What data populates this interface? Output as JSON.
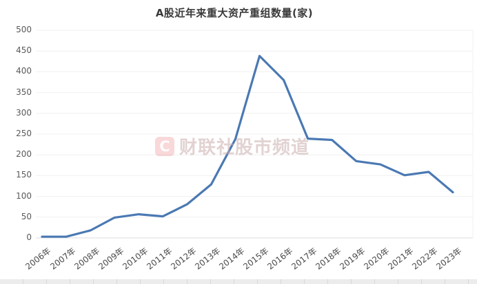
{
  "chart_data": {
    "type": "line",
    "title": "A股近年来重大资产重组数量(家)",
    "categories": [
      "2006年",
      "2007年",
      "2008年",
      "2009年",
      "2010年",
      "2011年",
      "2012年",
      "2013年",
      "2014年",
      "2015年",
      "2016年",
      "2017年",
      "2018年",
      "2019年",
      "2020年",
      "2021年",
      "2022年",
      "2023年"
    ],
    "values": [
      3,
      3,
      18,
      49,
      57,
      52,
      81,
      129,
      238,
      438,
      380,
      239,
      236,
      185,
      177,
      151,
      159,
      110
    ],
    "xlabel": "",
    "ylabel": "",
    "ylim": [
      0,
      500
    ],
    "ytick_interval": 50,
    "grid": true,
    "legend": "none"
  },
  "watermark": {
    "logo_letter": "C",
    "text": "财联社股市频道"
  },
  "colors": {
    "line": "#4a79b3",
    "grid": "#f0f0f0",
    "axis_line": "#dcdcdc",
    "axis_label": "#595959",
    "title": "#3a3a3a",
    "watermark_red": "#e76770"
  }
}
